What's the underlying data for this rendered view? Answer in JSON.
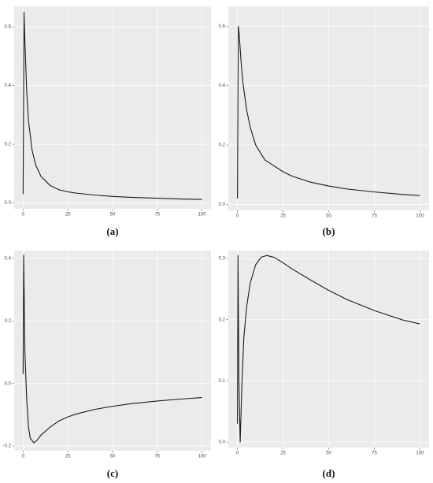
{
  "chart_data": [
    {
      "type": "line",
      "caption": "(a)",
      "color": "#1a1a1a",
      "x": [
        0,
        0.5,
        1,
        2,
        3,
        5,
        7,
        10,
        15,
        20,
        25,
        30,
        40,
        50,
        60,
        75,
        90,
        100
      ],
      "values": [
        0.03,
        0.65,
        0.55,
        0.38,
        0.28,
        0.18,
        0.13,
        0.09,
        0.06,
        0.045,
        0.038,
        0.033,
        0.027,
        0.022,
        0.019,
        0.016,
        0.013,
        0.012
      ],
      "xlim": [
        -5,
        105
      ],
      "ylim": [
        -0.02,
        0.67
      ],
      "xticks": [
        0,
        25,
        50,
        75,
        100
      ],
      "yticks": [
        {
          "value": 0,
          "label": "0.0"
        },
        0.2,
        0.4,
        0.6
      ],
      "grid": true
    },
    {
      "type": "line",
      "caption": "(b)",
      "color": "#1a1a1a",
      "x": [
        0,
        0.5,
        1,
        2,
        3,
        5,
        7,
        10,
        15,
        20,
        25,
        30,
        40,
        50,
        60,
        75,
        90,
        100
      ],
      "values": [
        0.02,
        0.6,
        0.57,
        0.48,
        0.41,
        0.32,
        0.26,
        0.2,
        0.15,
        0.13,
        0.11,
        0.095,
        0.075,
        0.062,
        0.052,
        0.042,
        0.034,
        0.03
      ],
      "xlim": [
        -5,
        105
      ],
      "ylim": [
        -0.02,
        0.667
      ],
      "xticks": [
        0,
        25,
        50,
        75,
        100
      ],
      "yticks": [
        {
          "value": 0,
          "label": "0.0"
        },
        0.2,
        0.4,
        0.6
      ],
      "grid": true
    },
    {
      "type": "line",
      "caption": "(c)",
      "color": "#1a1a1a",
      "x": [
        0,
        0.3,
        1,
        2,
        3,
        4,
        6,
        8,
        10,
        15,
        20,
        25,
        30,
        40,
        50,
        60,
        75,
        90,
        100
      ],
      "values": [
        0.03,
        0.41,
        0.1,
        -0.05,
        -0.14,
        -0.175,
        -0.19,
        -0.18,
        -0.165,
        -0.14,
        -0.12,
        -0.107,
        -0.097,
        -0.083,
        -0.073,
        -0.065,
        -0.056,
        -0.049,
        -0.045
      ],
      "xlim": [
        -5,
        105
      ],
      "ylim": [
        -0.215,
        0.425
      ],
      "xticks": [
        0,
        25,
        50,
        75,
        100
      ],
      "yticks": [
        -0.2,
        {
          "value": 0,
          "label": "0.0"
        },
        0.2,
        0.4
      ],
      "grid": true
    },
    {
      "type": "line",
      "caption": "(d)",
      "color": "#1a1a1a",
      "x": [
        0,
        0.3,
        0.8,
        1.5,
        2.5,
        3.5,
        5,
        7,
        10,
        13,
        16,
        20,
        25,
        30,
        40,
        50,
        60,
        75,
        90,
        100
      ],
      "values": [
        0.03,
        0.305,
        0.1,
        0.0,
        0.1,
        0.17,
        0.22,
        0.26,
        0.29,
        0.302,
        0.305,
        0.302,
        0.293,
        0.283,
        0.265,
        0.248,
        0.233,
        0.215,
        0.2,
        0.193
      ],
      "xlim": [
        -5,
        105
      ],
      "ylim": [
        -0.009,
        0.313
      ],
      "xticks": [
        0,
        25,
        50,
        75,
        100
      ],
      "yticks": [
        {
          "value": 0,
          "label": "0.0"
        },
        0.1,
        0.2,
        0.3
      ],
      "grid": true
    }
  ]
}
